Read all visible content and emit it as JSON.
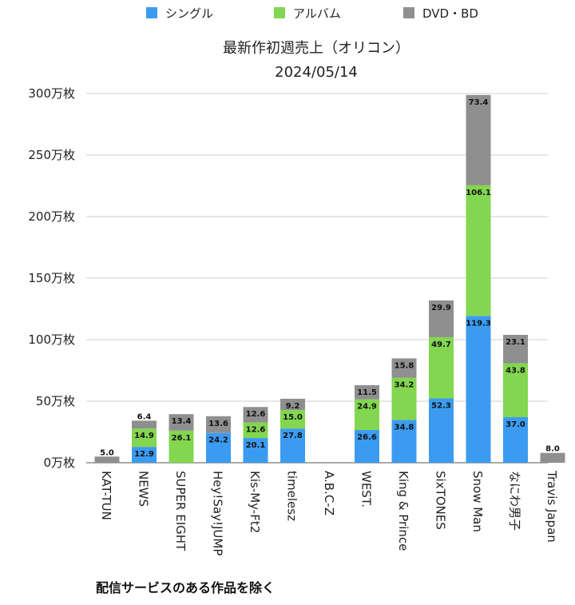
{
  "chart_data": {
    "type": "bar",
    "stacked": true,
    "title": "最新作初週売上（オリコン）",
    "subtitle": "2024/05/14",
    "ylim": [
      0,
      3000000
    ],
    "yticks": [
      "0万枚",
      "50万枚",
      "100万枚",
      "150万枚",
      "200万枚",
      "250万枚",
      "300万枚"
    ],
    "grid": true,
    "legend_position": "top",
    "categories": [
      "KAT-TUN",
      "NEWS",
      "SUPER EIGHT",
      "Hey!Say!JUMP",
      "Kis-My-Ft2",
      "timelesz",
      "A.B.C-Z",
      "WEST.",
      "King & Prince",
      "SixTONES",
      "Snow Man",
      "なにわ男子",
      "Travis Japan"
    ],
    "series": [
      {
        "name": "シングル",
        "color": "#3b9bf0",
        "values": [
          null,
          12.9,
          null,
          24.2,
          20.1,
          27.8,
          null,
          26.6,
          34.8,
          52.3,
          119.3,
          37.0,
          null
        ]
      },
      {
        "name": "アルバム",
        "color": "#83d650",
        "values": [
          null,
          14.9,
          26.1,
          null,
          12.6,
          15.0,
          null,
          24.9,
          34.2,
          49.7,
          106.1,
          43.8,
          null
        ]
      },
      {
        "name": "DVD・BD",
        "color": "#8f8f8f",
        "values": [
          5.0,
          6.4,
          13.4,
          13.6,
          12.6,
          9.2,
          null,
          11.5,
          15.8,
          29.9,
          73.4,
          23.1,
          8.0
        ]
      }
    ]
  },
  "footnote": "配信サービスのある作品を除く"
}
